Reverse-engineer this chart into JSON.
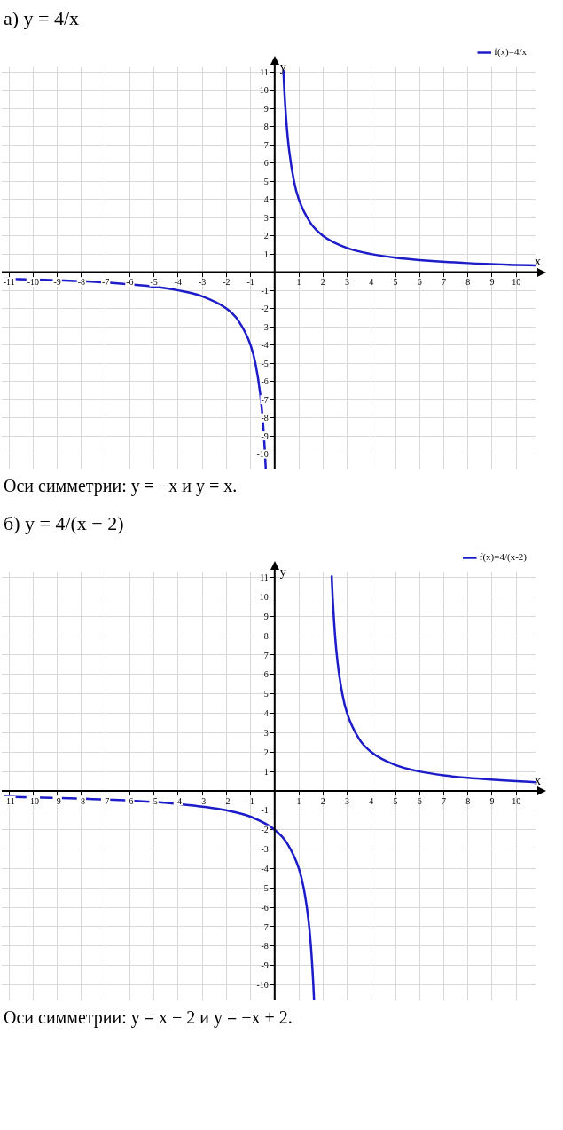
{
  "chart_data": [
    {
      "type": "line",
      "title": "а) y = 4/x",
      "xlabel": "x",
      "ylabel": "y",
      "xlim": [
        -11.3,
        10.8
      ],
      "ylim": [
        -10.8,
        11.3
      ],
      "xticks": [
        -11,
        -10,
        -9,
        -8,
        -7,
        -6,
        -5,
        -4,
        -3,
        -2,
        -1,
        1,
        2,
        3,
        4,
        5,
        6,
        7,
        8,
        9,
        10
      ],
      "yticks": [
        -10,
        -9,
        -8,
        -7,
        -6,
        -5,
        -4,
        -3,
        -2,
        -1,
        1,
        2,
        3,
        4,
        5,
        6,
        7,
        8,
        9,
        10,
        11
      ],
      "grid": true,
      "legend": "top right",
      "marker": "none",
      "line_style": "solid",
      "series": [
        {
          "name": "f(x)=4/x",
          "color": "#1c1cc8",
          "x": [
            -11.2,
            -9.5,
            -8,
            -6.5,
            -5,
            -4,
            -3,
            -2,
            -1.5,
            -1,
            -0.8,
            -0.6,
            -0.5,
            -0.4,
            -0.37,
            0,
            0.36,
            0.4,
            0.5,
            0.6,
            0.8,
            1,
            1.5,
            2,
            3,
            4,
            5,
            6,
            8,
            10,
            10.8
          ],
          "values": [
            -0.36,
            -0.42,
            -0.5,
            -0.62,
            -0.8,
            -1,
            -1.33,
            -2,
            -2.67,
            -4,
            -5,
            -6.67,
            -8,
            -10,
            -10.8,
            null,
            11.1,
            10,
            8,
            6.67,
            5,
            4,
            2.67,
            2,
            1.33,
            1,
            0.8,
            0.67,
            0.5,
            0.4,
            0.37
          ]
        }
      ],
      "annotations": [
        "Оси симметрии: y = −x и y = x."
      ]
    },
    {
      "type": "line",
      "title": "б) y = 4/(x − 2)",
      "xlabel": "x",
      "ylabel": "y",
      "xlim": [
        -11.3,
        10.8
      ],
      "ylim": [
        -10.8,
        11.3
      ],
      "xticks": [
        -11,
        -10,
        -9,
        -8,
        -7,
        -6,
        -5,
        -4,
        -3,
        -2,
        -1,
        1,
        2,
        3,
        4,
        5,
        6,
        7,
        8,
        9,
        10
      ],
      "yticks": [
        -10,
        -9,
        -8,
        -7,
        -6,
        -5,
        -4,
        -3,
        -2,
        -1,
        1,
        2,
        3,
        4,
        5,
        6,
        7,
        8,
        9,
        10,
        11
      ],
      "grid": true,
      "legend": "top right",
      "marker": "none",
      "line_style": "solid",
      "series": [
        {
          "name": "f(x)=4/(x-2)",
          "color": "#1c1cc8",
          "x": [
            -11.2,
            -10,
            -8.5,
            -6,
            -4,
            -2,
            -1,
            0,
            0.5,
            1,
            1.2,
            1.4,
            1.5,
            1.6,
            1.63,
            2,
            2.36,
            2.4,
            2.5,
            2.6,
            2.8,
            3,
            3.5,
            4,
            5,
            6,
            7,
            8,
            10,
            10.8
          ],
          "values": [
            -0.3,
            -0.33,
            -0.38,
            -0.5,
            -0.67,
            -1,
            -1.33,
            -2,
            -2.67,
            -4,
            -5,
            -6.67,
            -8,
            -10,
            -10.8,
            null,
            11.1,
            10,
            8,
            6.67,
            5,
            4,
            2.67,
            2,
            1.33,
            1,
            0.8,
            0.67,
            0.5,
            0.45
          ]
        }
      ],
      "annotations": [
        "Оси симметрии: y = x − 2 и y = −x + 2."
      ]
    }
  ]
}
